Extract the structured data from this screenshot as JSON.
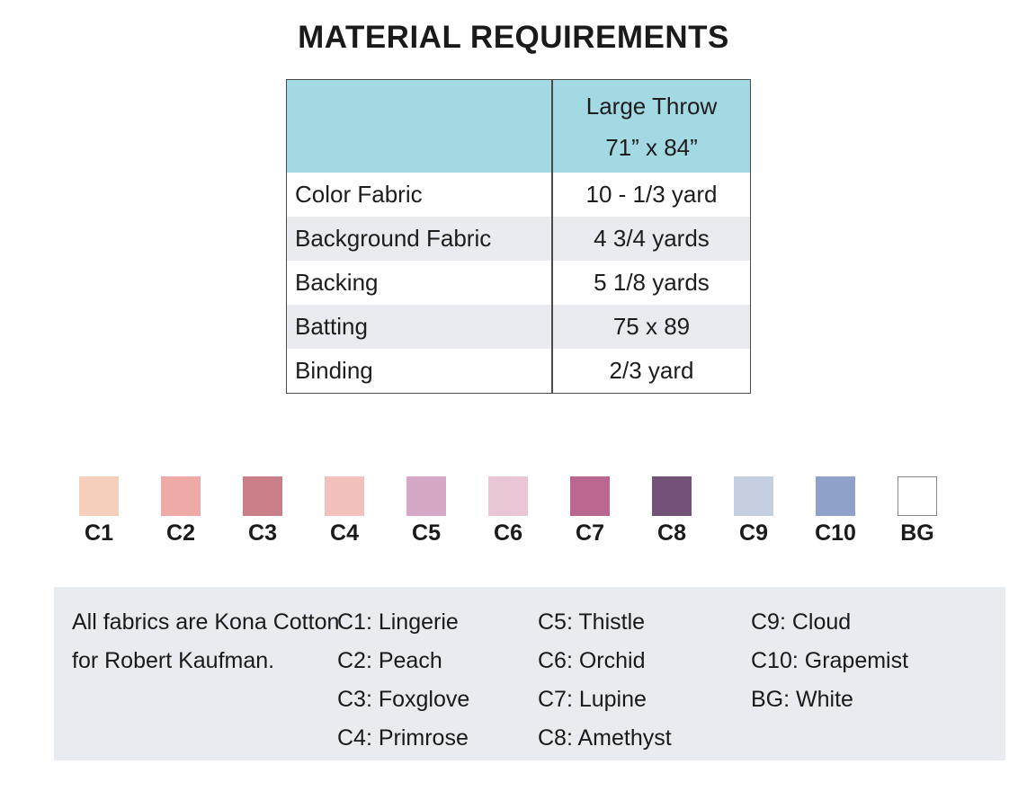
{
  "page": {
    "title": "MATERIAL REQUIREMENTS"
  },
  "table": {
    "header": {
      "line1": "Large Throw",
      "line2": "71” x 84”"
    },
    "rows": [
      {
        "label": "Color Fabric",
        "value": "10 - 1/3 yard"
      },
      {
        "label": "Background Fabric",
        "value": "4 3/4 yards"
      },
      {
        "label": "Backing",
        "value": "5 1/8 yards"
      },
      {
        "label": "Batting",
        "value": "75 x 89"
      },
      {
        "label": "Binding",
        "value": "2/3 yard"
      }
    ]
  },
  "swatches": [
    {
      "code": "C1",
      "color": "#f6cebc"
    },
    {
      "code": "C2",
      "color": "#efa9a7"
    },
    {
      "code": "C3",
      "color": "#ca7e88"
    },
    {
      "code": "C4",
      "color": "#f2c0bd"
    },
    {
      "code": "C5",
      "color": "#d5a8c5"
    },
    {
      "code": "C6",
      "color": "#e9c6d6"
    },
    {
      "code": "C7",
      "color": "#b9678f"
    },
    {
      "code": "C8",
      "color": "#745179"
    },
    {
      "code": "C9",
      "color": "#c6cfdf"
    },
    {
      "code": "C10",
      "color": "#8fa0c9"
    },
    {
      "code": "BG",
      "color": "#ffffff"
    }
  ],
  "legend": {
    "note": "All fabrics are Kona Cotton for Robert Kaufman.",
    "col_b": [
      "C1: Lingerie",
      "C2: Peach",
      "C3: Foxglove",
      "C4: Primrose"
    ],
    "col_c": [
      "C5: Thistle",
      "C6: Orchid",
      "C7: Lupine",
      "C8: Amethyst"
    ],
    "col_d": [
      "C9: Cloud",
      "C10: Grapemist",
      "BG: White"
    ]
  },
  "colors": {
    "header_bg": "#a3d9e3",
    "alt_row_bg": "#e9ebf0",
    "panel_bg": "#e8ebf0"
  }
}
